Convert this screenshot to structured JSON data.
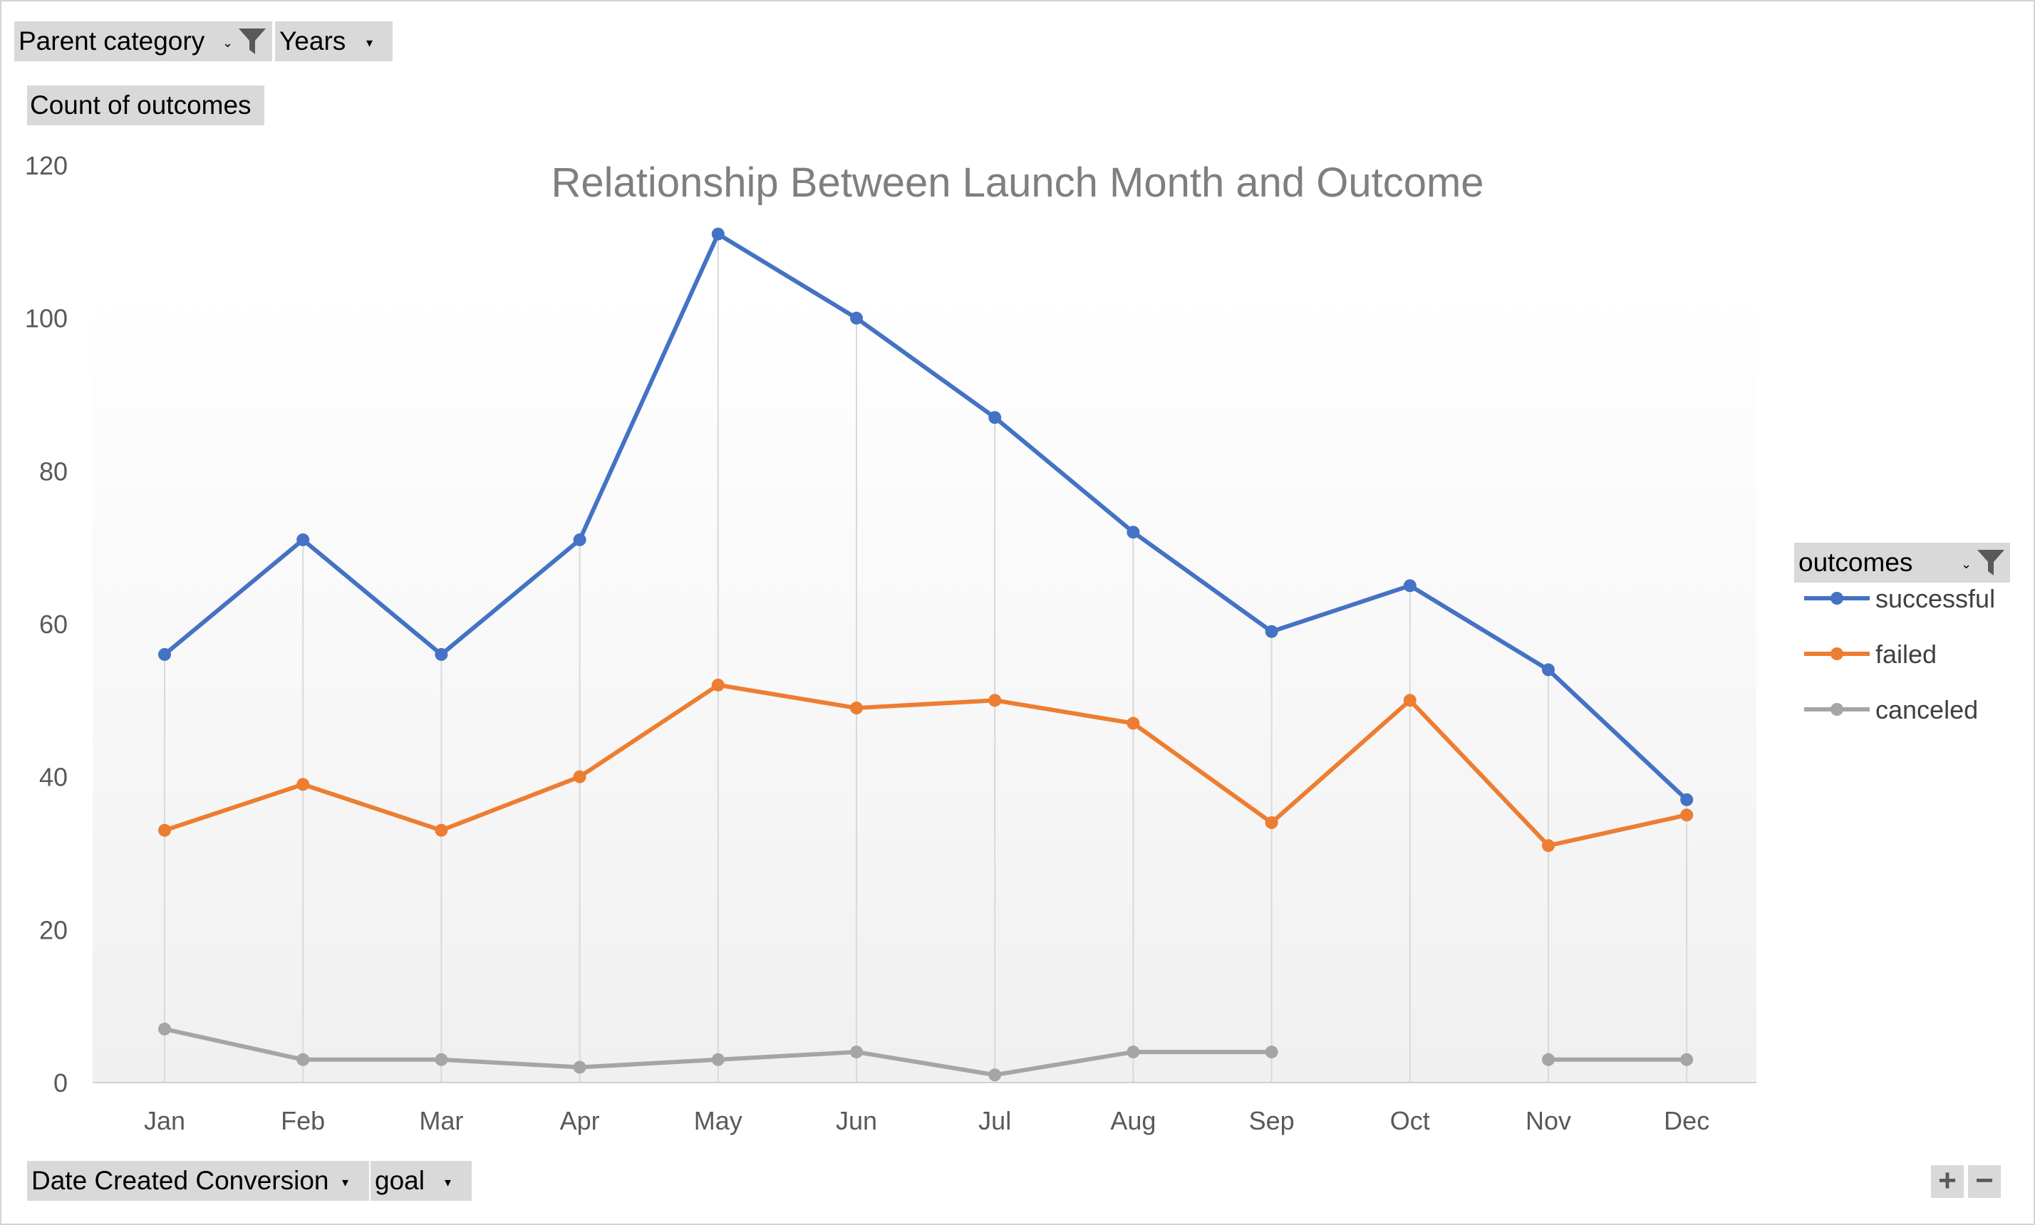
{
  "filters": {
    "parent_category": "Parent category",
    "years": "Years",
    "count_of_outcomes": "Count of outcomes",
    "date_created_conversion": "Date Created Conversion",
    "goal": "goal",
    "outcomes": "outcomes"
  },
  "icons": {
    "filter": "funnel-filter-icon",
    "dropdown": "dropdown-arrow-icon",
    "zoom_in": "plus-icon",
    "zoom_out": "minus-icon"
  },
  "zoom": {
    "plus": "+",
    "minus": "−"
  },
  "chart_data": {
    "type": "line",
    "title": "Relationship Between Launch Month and Outcome",
    "xlabel": "",
    "ylabel": "",
    "categories": [
      "Jan",
      "Feb",
      "Mar",
      "Apr",
      "May",
      "Jun",
      "Jul",
      "Aug",
      "Sep",
      "Oct",
      "Nov",
      "Dec"
    ],
    "ylim": [
      0,
      120
    ],
    "yticks": [
      0,
      20,
      40,
      60,
      80,
      100,
      120
    ],
    "grid": "vertical drop lines",
    "legend_position": "right",
    "series": [
      {
        "name": "successful",
        "color": "#4472C4",
        "values": [
          56,
          71,
          56,
          71,
          111,
          100,
          87,
          72,
          59,
          65,
          54,
          37
        ]
      },
      {
        "name": "failed",
        "color": "#ED7D31",
        "values": [
          33,
          39,
          33,
          40,
          52,
          49,
          50,
          47,
          34,
          50,
          31,
          35
        ]
      },
      {
        "name": "canceled",
        "color": "#A5A5A5",
        "values": [
          7,
          3,
          3,
          2,
          3,
          4,
          1,
          4,
          4,
          null,
          3,
          3
        ]
      }
    ]
  }
}
